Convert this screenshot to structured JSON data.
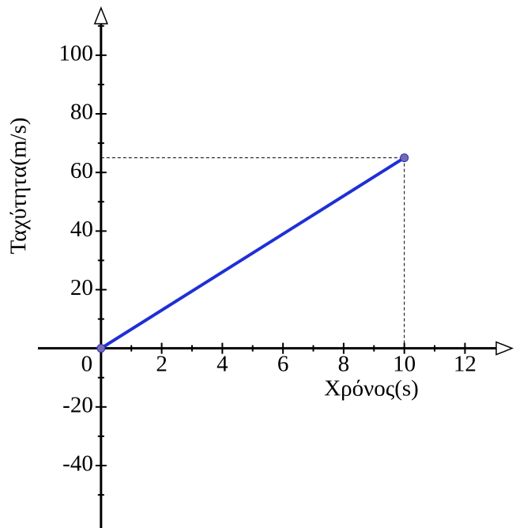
{
  "chart_data": {
    "type": "line",
    "x_label": "Χρόνος(s)",
    "y_label": "Ταχύτητα(m/s)",
    "x": [
      0,
      10
    ],
    "series": [
      {
        "color": "#1f2fd6",
        "values": [
          0,
          65
        ]
      }
    ],
    "xlim": [
      -2.08,
      13.5
    ],
    "ylim": [
      -61.3,
      115.6
    ],
    "xticks": [
      0,
      2,
      4,
      6,
      8,
      10,
      12
    ],
    "yticks": [
      -40,
      -20,
      20,
      40,
      60,
      80,
      100
    ],
    "xminorticks": [
      1,
      3,
      5,
      7,
      9,
      11
    ],
    "yminorticks": [
      -50,
      -30,
      -10,
      10,
      30,
      50,
      70,
      90,
      110
    ],
    "guide_lines": true
  }
}
